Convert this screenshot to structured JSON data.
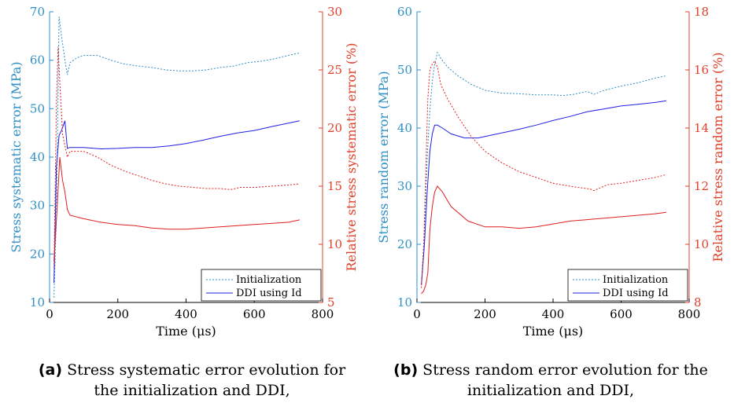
{
  "colors": {
    "left_axis": "#2f8fc6",
    "right_axis": "#e0402a",
    "line_blue": "#1f1fe0",
    "line_red": "#e01e1e",
    "axis": "#000000"
  },
  "chart_data": [
    {
      "type": "line",
      "xlabel": "Time (μs)",
      "ylabel_left": "Stress systematic error (MPa)",
      "ylabel_right": "Relative stress systematic error (%)",
      "xlim": [
        0,
        800
      ],
      "xticks": [
        0,
        200,
        400,
        600,
        800
      ],
      "ylim_left": [
        10,
        70
      ],
      "yticks_left": [
        10,
        20,
        30,
        40,
        50,
        60,
        70
      ],
      "ylim_right": [
        5,
        30
      ],
      "yticks_right": [
        5,
        10,
        15,
        20,
        25,
        30
      ],
      "legend": {
        "position": "bottom-right",
        "entries": [
          "Initialization",
          "DDI using Id"
        ]
      },
      "series": [
        {
          "name": "Initialization",
          "axis": "left",
          "style": "dotted",
          "color": "#2f8fc6",
          "x": [
            13,
            20,
            28,
            35,
            45,
            52,
            60,
            80,
            100,
            140,
            180,
            220,
            260,
            300,
            340,
            380,
            420,
            460,
            500,
            540,
            580,
            620,
            660,
            700,
            733
          ],
          "y": [
            11,
            28,
            69,
            65,
            60,
            57,
            59.5,
            60.5,
            61,
            61,
            60,
            59.2,
            58.8,
            58.5,
            58,
            57.8,
            57.8,
            58,
            58.5,
            58.8,
            59.5,
            59.8,
            60.3,
            61,
            61.5
          ]
        },
        {
          "name": "DDI using Id",
          "axis": "left",
          "style": "solid",
          "color": "#1f1fe0",
          "x": [
            13,
            20,
            28,
            35,
            45,
            52,
            60,
            100,
            150,
            200,
            250,
            300,
            350,
            400,
            450,
            500,
            550,
            600,
            650,
            700,
            733
          ],
          "y": [
            14,
            38,
            44.5,
            45.5,
            47.5,
            41.8,
            42,
            42,
            41.7,
            41.8,
            42,
            42,
            42.3,
            42.8,
            43.5,
            44.3,
            45,
            45.5,
            46.3,
            47,
            47.5
          ]
        },
        {
          "name": "Initialization (relative)",
          "axis": "right",
          "style": "dotted",
          "color": "#e01e1e",
          "x": [
            13,
            20,
            25,
            30,
            38,
            45,
            52,
            60,
            80,
            100,
            140,
            180,
            220,
            260,
            300,
            340,
            380,
            420,
            460,
            500,
            530,
            560,
            600,
            650,
            700,
            733
          ],
          "y": [
            8,
            22,
            27,
            24,
            19.5,
            18.5,
            17.5,
            18,
            18,
            18,
            17.5,
            16.8,
            16.3,
            15.9,
            15.5,
            15.2,
            15,
            14.9,
            14.8,
            14.8,
            14.7,
            14.9,
            14.9,
            15,
            15.1,
            15.2
          ]
        },
        {
          "name": "DDI using Id (relative)",
          "axis": "right",
          "style": "solid",
          "color": "#e01e1e",
          "x": [
            13,
            22,
            30,
            38,
            45,
            52,
            60,
            100,
            150,
            200,
            250,
            300,
            350,
            400,
            450,
            500,
            550,
            600,
            650,
            700,
            733
          ],
          "y": [
            8.5,
            13,
            17.5,
            15.5,
            14.5,
            13,
            12.5,
            12.2,
            11.9,
            11.7,
            11.6,
            11.4,
            11.3,
            11.3,
            11.4,
            11.5,
            11.6,
            11.7,
            11.8,
            11.9,
            12.1
          ]
        }
      ]
    },
    {
      "type": "line",
      "xlabel": "Time (μs)",
      "ylabel_left": "Stress random error (MPa)",
      "ylabel_right": "Relative stress random error (%)",
      "xlim": [
        0,
        800
      ],
      "xticks": [
        0,
        200,
        400,
        600,
        800
      ],
      "ylim_left": [
        10,
        60
      ],
      "yticks_left": [
        10,
        20,
        30,
        40,
        50,
        60
      ],
      "ylim_right": [
        8,
        18
      ],
      "yticks_right": [
        8,
        10,
        12,
        14,
        16,
        18
      ],
      "legend": {
        "position": "bottom-right",
        "entries": [
          "Initialization",
          "DDI using Id"
        ]
      },
      "series": [
        {
          "name": "Initialization",
          "axis": "left",
          "style": "dotted",
          "color": "#2f8fc6",
          "x": [
            13,
            22,
            30,
            38,
            45,
            52,
            60,
            70,
            90,
            120,
            160,
            200,
            250,
            300,
            350,
            400,
            430,
            460,
            500,
            520,
            550,
            600,
            650,
            700,
            733
          ],
          "y": [
            13,
            22,
            35,
            43,
            48,
            51,
            53,
            52,
            50.5,
            49,
            47.5,
            46.5,
            46,
            45.9,
            45.7,
            45.7,
            45.6,
            45.8,
            46.3,
            45.8,
            46.5,
            47.2,
            47.8,
            48.6,
            49
          ]
        },
        {
          "name": "DDI using Id",
          "axis": "left",
          "style": "solid",
          "color": "#1f1fe0",
          "x": [
            13,
            22,
            30,
            38,
            45,
            52,
            60,
            75,
            100,
            140,
            180,
            220,
            260,
            300,
            350,
            400,
            450,
            500,
            550,
            600,
            650,
            700,
            733
          ],
          "y": [
            13,
            20,
            29,
            36,
            39,
            40.5,
            40.5,
            40,
            39,
            38.3,
            38.3,
            38.8,
            39.3,
            39.8,
            40.5,
            41.3,
            42,
            42.8,
            43.3,
            43.8,
            44.1,
            44.4,
            44.7
          ]
        },
        {
          "name": "Initialization (relative)",
          "axis": "right",
          "style": "dotted",
          "color": "#e01e1e",
          "x": [
            13,
            20,
            26,
            32,
            38,
            45,
            52,
            60,
            70,
            90,
            120,
            160,
            200,
            250,
            300,
            350,
            400,
            450,
            480,
            510,
            520,
            540,
            560,
            600,
            650,
            700,
            733
          ],
          "y": [
            8.5,
            10,
            12.5,
            15,
            16,
            16.2,
            16.3,
            16.1,
            15.5,
            15,
            14.4,
            13.7,
            13.2,
            12.8,
            12.5,
            12.3,
            12.1,
            12,
            11.95,
            11.9,
            11.85,
            11.95,
            12.05,
            12.1,
            12.2,
            12.3,
            12.4
          ]
        },
        {
          "name": "DDI using Id (relative)",
          "axis": "right",
          "style": "solid",
          "color": "#e01e1e",
          "x": [
            13,
            20,
            26,
            32,
            38,
            45,
            52,
            60,
            75,
            100,
            150,
            200,
            250,
            300,
            350,
            400,
            450,
            500,
            550,
            600,
            650,
            700,
            733
          ],
          "y": [
            8.3,
            8.4,
            8.6,
            9,
            10.5,
            11.3,
            11.8,
            12,
            11.8,
            11.3,
            10.8,
            10.6,
            10.6,
            10.55,
            10.6,
            10.7,
            10.8,
            10.85,
            10.9,
            10.95,
            11,
            11.05,
            11.1
          ]
        }
      ]
    }
  ],
  "captions": [
    {
      "tag": "(a)",
      "line1": "Stress systematic error evolution for",
      "line2": "the initialization and DDI,"
    },
    {
      "tag": "(b)",
      "line1": "Stress random error evolution for the",
      "line2": "initialization and DDI,"
    }
  ]
}
